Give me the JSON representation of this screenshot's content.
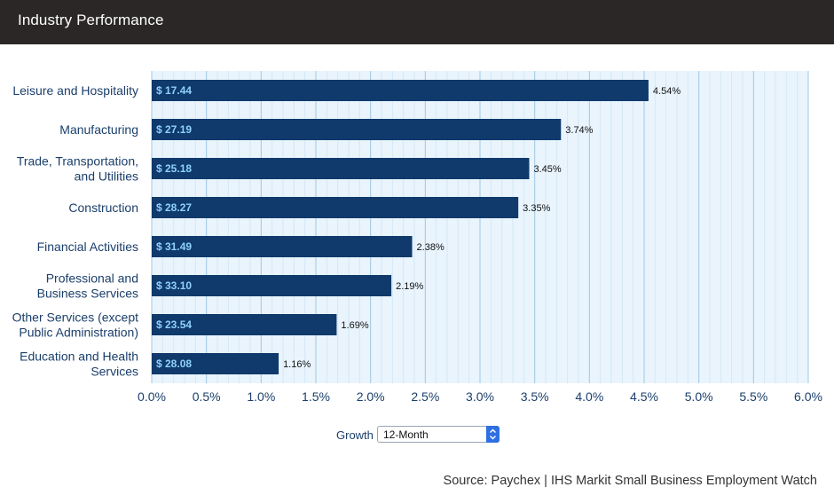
{
  "header": {
    "title": "Industry Performance"
  },
  "chart_data": {
    "type": "bar",
    "orientation": "horizontal",
    "categories": [
      [
        "Leisure and Hospitality"
      ],
      [
        "Manufacturing"
      ],
      [
        "Trade, Transportation,",
        "and Utilities"
      ],
      [
        "Construction"
      ],
      [
        "Financial Activities"
      ],
      [
        "Professional and",
        "Business Services"
      ],
      [
        "Other Services (except",
        "Public Administration)"
      ],
      [
        "Education and Health",
        "Services"
      ]
    ],
    "values": [
      4.54,
      3.74,
      3.45,
      3.35,
      2.38,
      2.19,
      1.69,
      1.16
    ],
    "value_labels": [
      "4.54%",
      "3.74%",
      "3.45%",
      "3.35%",
      "2.38%",
      "2.19%",
      "1.69%",
      "1.16%"
    ],
    "bar_labels": [
      "$ 17.44",
      "$ 27.19",
      "$ 25.18",
      "$ 28.27",
      "$ 31.49",
      "$ 33.10",
      "$ 23.54",
      "$ 28.08"
    ],
    "x_ticks": [
      "0.0%",
      "0.5%",
      "1.0%",
      "1.5%",
      "2.0%",
      "2.5%",
      "3.0%",
      "3.5%",
      "4.0%",
      "4.5%",
      "5.0%",
      "5.5%",
      "6.0%"
    ],
    "xlim": [
      0,
      6
    ],
    "grid": true,
    "colors": {
      "bar": "#0f3a6b",
      "bar_label": "#8fd0ff",
      "plot_bg": "#e9f4fd",
      "grid_major": "#9fc8e3",
      "grid_minor": "#d4e8f6"
    }
  },
  "controls": {
    "growth_label": "Growth",
    "growth_select_value": "12-Month"
  },
  "footer": {
    "source": "Source: Paychex | IHS Markit Small Business Employment Watch"
  }
}
